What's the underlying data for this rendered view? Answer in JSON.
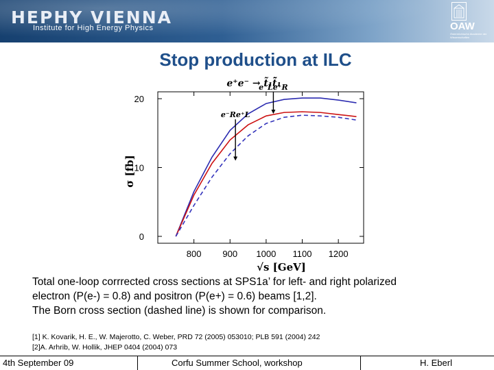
{
  "header": {
    "logo_text": "HEPHY VIENNA",
    "logo_subtitle": "Institute for High Energy Physics",
    "partner_logo": "OAW",
    "partner_small": "Österreichische Akademie der Wissenschaften"
  },
  "slide": {
    "title": "Stop production at ILC"
  },
  "chart_data": {
    "type": "line",
    "title": "e⁺e⁻ → t̃₁t̃̄₁",
    "xlabel": "√s [GeV]",
    "ylabel": "σ [fb]",
    "xlim": [
      700,
      1270
    ],
    "ylim": [
      -1,
      21
    ],
    "xticks": [
      800,
      900,
      1000,
      1100,
      1200
    ],
    "yticks": [
      0,
      10,
      20
    ],
    "series": [
      {
        "name": "",
        "color": "#2b2bb0",
        "dash": false,
        "x": [
          750,
          800,
          850,
          900,
          950,
          1000,
          1050,
          1100,
          1150,
          1200,
          1250
        ],
        "y": [
          0,
          6.5,
          11.5,
          15.4,
          17.8,
          19.3,
          19.9,
          20.1,
          20.1,
          19.8,
          19.4
        ]
      },
      {
        "name": "",
        "color": "#cc1111",
        "dash": false,
        "x": [
          750,
          800,
          850,
          900,
          950,
          1000,
          1050,
          1100,
          1150,
          1200,
          1250
        ],
        "y": [
          0,
          6.0,
          10.6,
          14.0,
          16.2,
          17.5,
          18.0,
          18.1,
          18.0,
          17.7,
          17.4
        ]
      },
      {
        "name": "",
        "color": "#3333bb",
        "dash": true,
        "x": [
          750,
          800,
          850,
          900,
          950,
          1000,
          1050,
          1100,
          1150,
          1200,
          1250
        ],
        "y": [
          0,
          4.5,
          8.6,
          12.0,
          14.6,
          16.4,
          17.3,
          17.6,
          17.5,
          17.3,
          16.9
        ]
      }
    ],
    "annotations": [
      {
        "label": "e⁻Le⁺R",
        "x": 1020,
        "y_from": 21,
        "y_to": 17.8
      },
      {
        "label": "e⁻Re⁺L",
        "x": 915,
        "y_from": 17,
        "y_to": 11
      }
    ]
  },
  "caption": {
    "line1": "Total one-loop corrrected cross sections at SPS1a’ for left- and right polarized",
    "line2": "electron (P(e-) = 0.8) and positron (P(e+) = 0.6) beams [1,2].",
    "line3": "The Born cross section (dashed line) is shown for comparison."
  },
  "references": {
    "ref1": "[1] K. Kovarik, H. E., W. Majerotto, C. Weber, PRD 72 (2005) 053010; PLB 591 (2004) 242",
    "ref2": "[2]A. Arhrib, W. Hollik, JHEP 0404 (2004) 073"
  },
  "footer": {
    "date": "4th September 09",
    "event": "Corfu Summer School, workshop",
    "author": "H. Eberl"
  }
}
